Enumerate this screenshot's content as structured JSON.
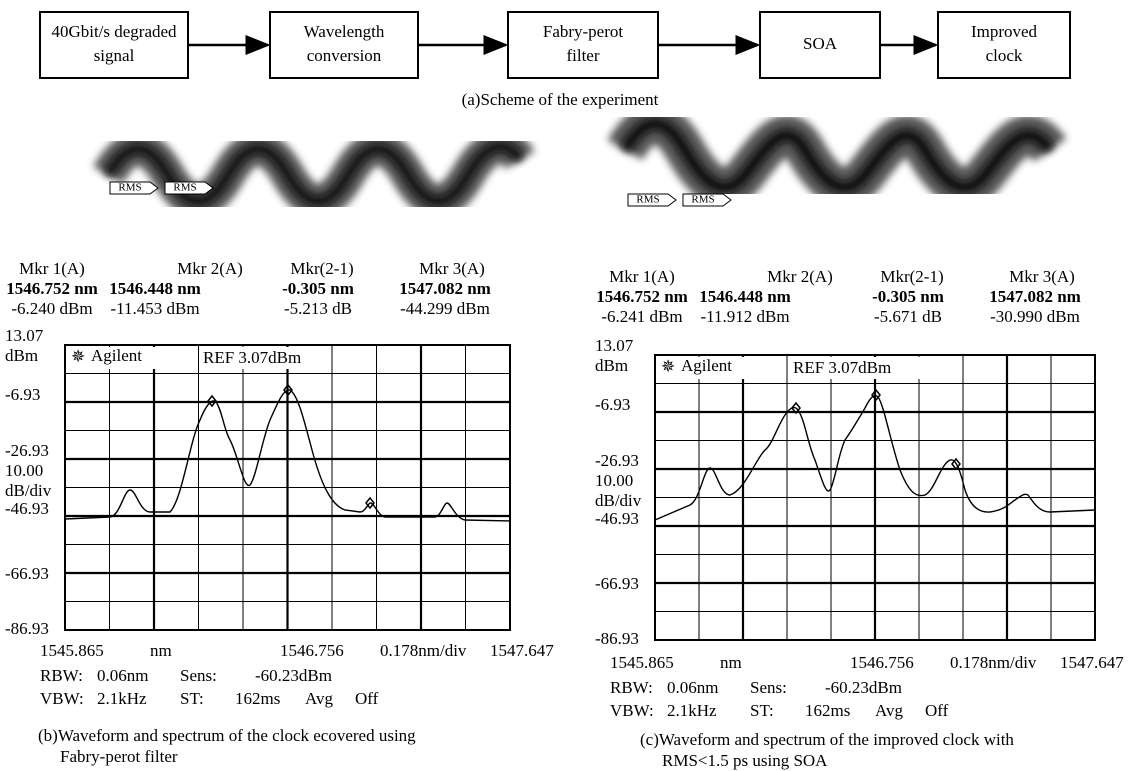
{
  "scheme": {
    "blocks": [
      [
        "40Gbit/s degraded",
        "signal"
      ],
      [
        "Wavelength",
        "conversion"
      ],
      [
        "Fabry-perot",
        "filter"
      ],
      [
        "SOA"
      ],
      [
        "Improved",
        "clock"
      ]
    ],
    "caption": "(a)Scheme of the experiment"
  },
  "panels": [
    {
      "waveform_tags": [
        "RMS",
        "RMS"
      ],
      "markers": [
        {
          "name": "Mkr 1(A)",
          "wavelength": "1546.752 nm",
          "power": "-6.240 dBm"
        },
        {
          "name": "Mkr 2(A)",
          "wavelength": "1546.448 nm",
          "power": "-11.453 dBm"
        },
        {
          "name": "Mkr(2-1)",
          "wavelength": "-0.305 nm",
          "power": "-5.213 dB"
        },
        {
          "name": "Mkr 3(A)",
          "wavelength": "1547.082 nm",
          "power": "-44.299 dBm"
        }
      ],
      "brand": "Agilent",
      "ref": "REF 3.07dBm",
      "y_labels": [
        "13.07",
        "dBm",
        "-6.93",
        "-26.93",
        "10.00",
        "dB/div",
        "-46.93",
        "-66.93",
        "-86.93"
      ],
      "x_labels": [
        "1545.865",
        "nm",
        "1546.756",
        "0.178nm/div",
        "1547.647"
      ],
      "settings": [
        [
          "RBW:",
          "0.06nm",
          "Sens:",
          "-60.23dBm"
        ],
        [
          "VBW:",
          "2.1kHz",
          "ST:",
          "162ms",
          "Avg",
          "Off"
        ]
      ],
      "caption": [
        "(b)Waveform and spectrum of the clock ecovered using",
        "Fabry-perot filter"
      ]
    },
    {
      "waveform_tags": [
        "RMS",
        "RMS"
      ],
      "markers": [
        {
          "name": "Mkr 1(A)",
          "wavelength": "1546.752 nm",
          "power": "-6.241 dBm"
        },
        {
          "name": "Mkr 2(A)",
          "wavelength": "1546.448 nm",
          "power": "-11.912 dBm"
        },
        {
          "name": "Mkr(2-1)",
          "wavelength": "-0.305 nm",
          "power": "-5.671 dB"
        },
        {
          "name": "Mkr 3(A)",
          "wavelength": "1547.082 nm",
          "power": "-30.990 dBm"
        }
      ],
      "brand": "Agilent",
      "ref": "REF 3.07dBm",
      "y_labels": [
        "13.07",
        "dBm",
        "-6.93",
        "-26.93",
        "10.00",
        "dB/div",
        "-46.93",
        "-66.93",
        "-86.93"
      ],
      "x_labels": [
        "1545.865",
        "nm",
        "1546.756",
        "0.178nm/div",
        "1547.647"
      ],
      "settings": [
        [
          "RBW:",
          "0.06nm",
          "Sens:",
          "-60.23dBm"
        ],
        [
          "VBW:",
          "2.1kHz",
          "ST:",
          "162ms",
          "Avg",
          "Off"
        ]
      ],
      "caption": [
        "(c)Waveform and spectrum of the improved clock with",
        "RMS<1.5 ps using SOA"
      ]
    }
  ]
}
